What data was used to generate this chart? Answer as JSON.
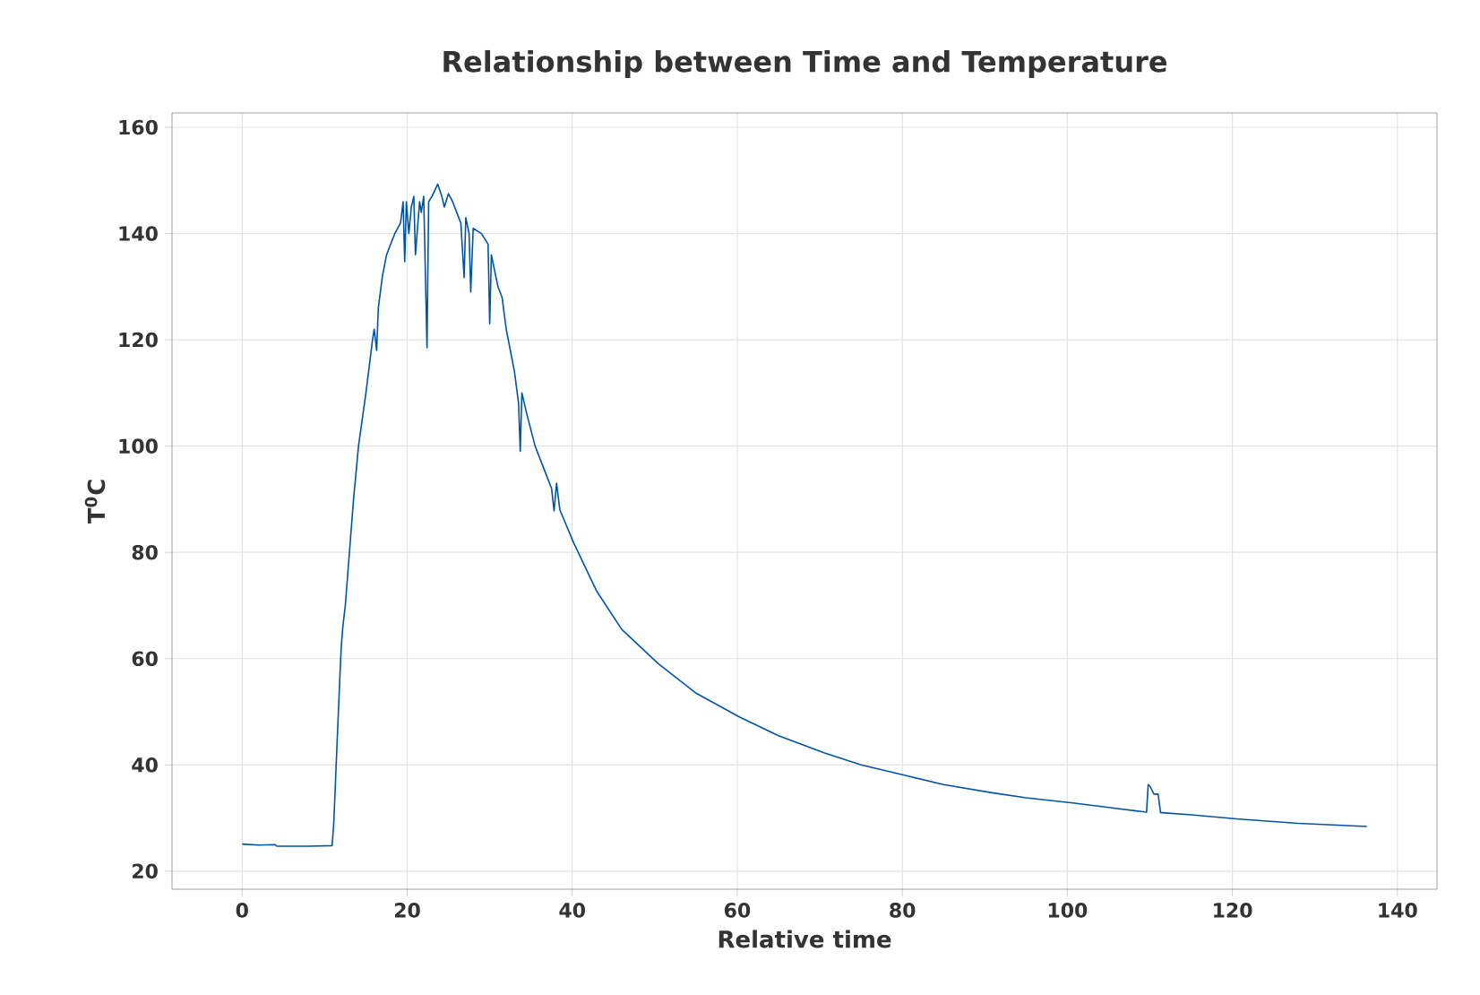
{
  "chart_data": {
    "type": "line",
    "title": "Relationship between Time and Temperature",
    "xlabel": "Relative time",
    "ylabel": "T$^{0}$C",
    "x": [
      0,
      2,
      4,
      4.2,
      8,
      10.9,
      11.1,
      11.5,
      11.8,
      12,
      12.2,
      12.5,
      13,
      13.5,
      14.1,
      15,
      15.8,
      16,
      16.3,
      16.5,
      17,
      17.5,
      18.5,
      19.2,
      19.5,
      19.7,
      19.9,
      20.2,
      20.5,
      20.8,
      21,
      21.5,
      21.7,
      22,
      22.4,
      22.6,
      23,
      23.7,
      24.2,
      24.5,
      25,
      25.5,
      26,
      26.5,
      26.9,
      27.1,
      27.5,
      27.7,
      28,
      29,
      29.8,
      30,
      30.2,
      31,
      31.5,
      32,
      32.5,
      33,
      33.5,
      33.7,
      33.9,
      34.5,
      35,
      35.5,
      36.5,
      37.5,
      37.8,
      38.1,
      38.5,
      40.2,
      43,
      46,
      50.4,
      55,
      60.3,
      65,
      70.5,
      75,
      80.7,
      85,
      90.7,
      95,
      100.9,
      105,
      109.6,
      109.8,
      110,
      110.5,
      111,
      111.3,
      111.5,
      115,
      120.8,
      128,
      136.3
    ],
    "series": [
      {
        "color": "#0054a6",
        "values": [
          25.1,
          24.9,
          25,
          24.7,
          24.7,
          24.8,
          29,
          44,
          55,
          62,
          66,
          70,
          80,
          90,
          100,
          110,
          120,
          122,
          118,
          126,
          132,
          136,
          140,
          142,
          146,
          134.7,
          146,
          140,
          145,
          147,
          136,
          146,
          144,
          147,
          118.5,
          146,
          147,
          149.3,
          147,
          145,
          147.5,
          146,
          144,
          142,
          131.7,
          143,
          140,
          129,
          141,
          140,
          138,
          123,
          136,
          130,
          128,
          122,
          118,
          114,
          108,
          99,
          110,
          106,
          103,
          100,
          96,
          92,
          87.8,
          93,
          88,
          81.7,
          72.6,
          65.5,
          59.1,
          53.5,
          49,
          45.5,
          42.3,
          40,
          37.9,
          36.3,
          34.8,
          33.8,
          32.8,
          32,
          31.1,
          36.3,
          36,
          34.5,
          34.5,
          31,
          31,
          30.6,
          29.8,
          29,
          28.4
        ]
      }
    ],
    "xlim": [
      -8.5,
      144.8
    ],
    "ylim": [
      16.6,
      162.7
    ],
    "xticks": [
      0,
      20,
      40,
      60,
      80,
      100,
      120,
      140
    ],
    "yticks": [
      20,
      40,
      60,
      80,
      100,
      120,
      140,
      160
    ],
    "grid": true,
    "line_style": "solid",
    "marker": "none"
  }
}
